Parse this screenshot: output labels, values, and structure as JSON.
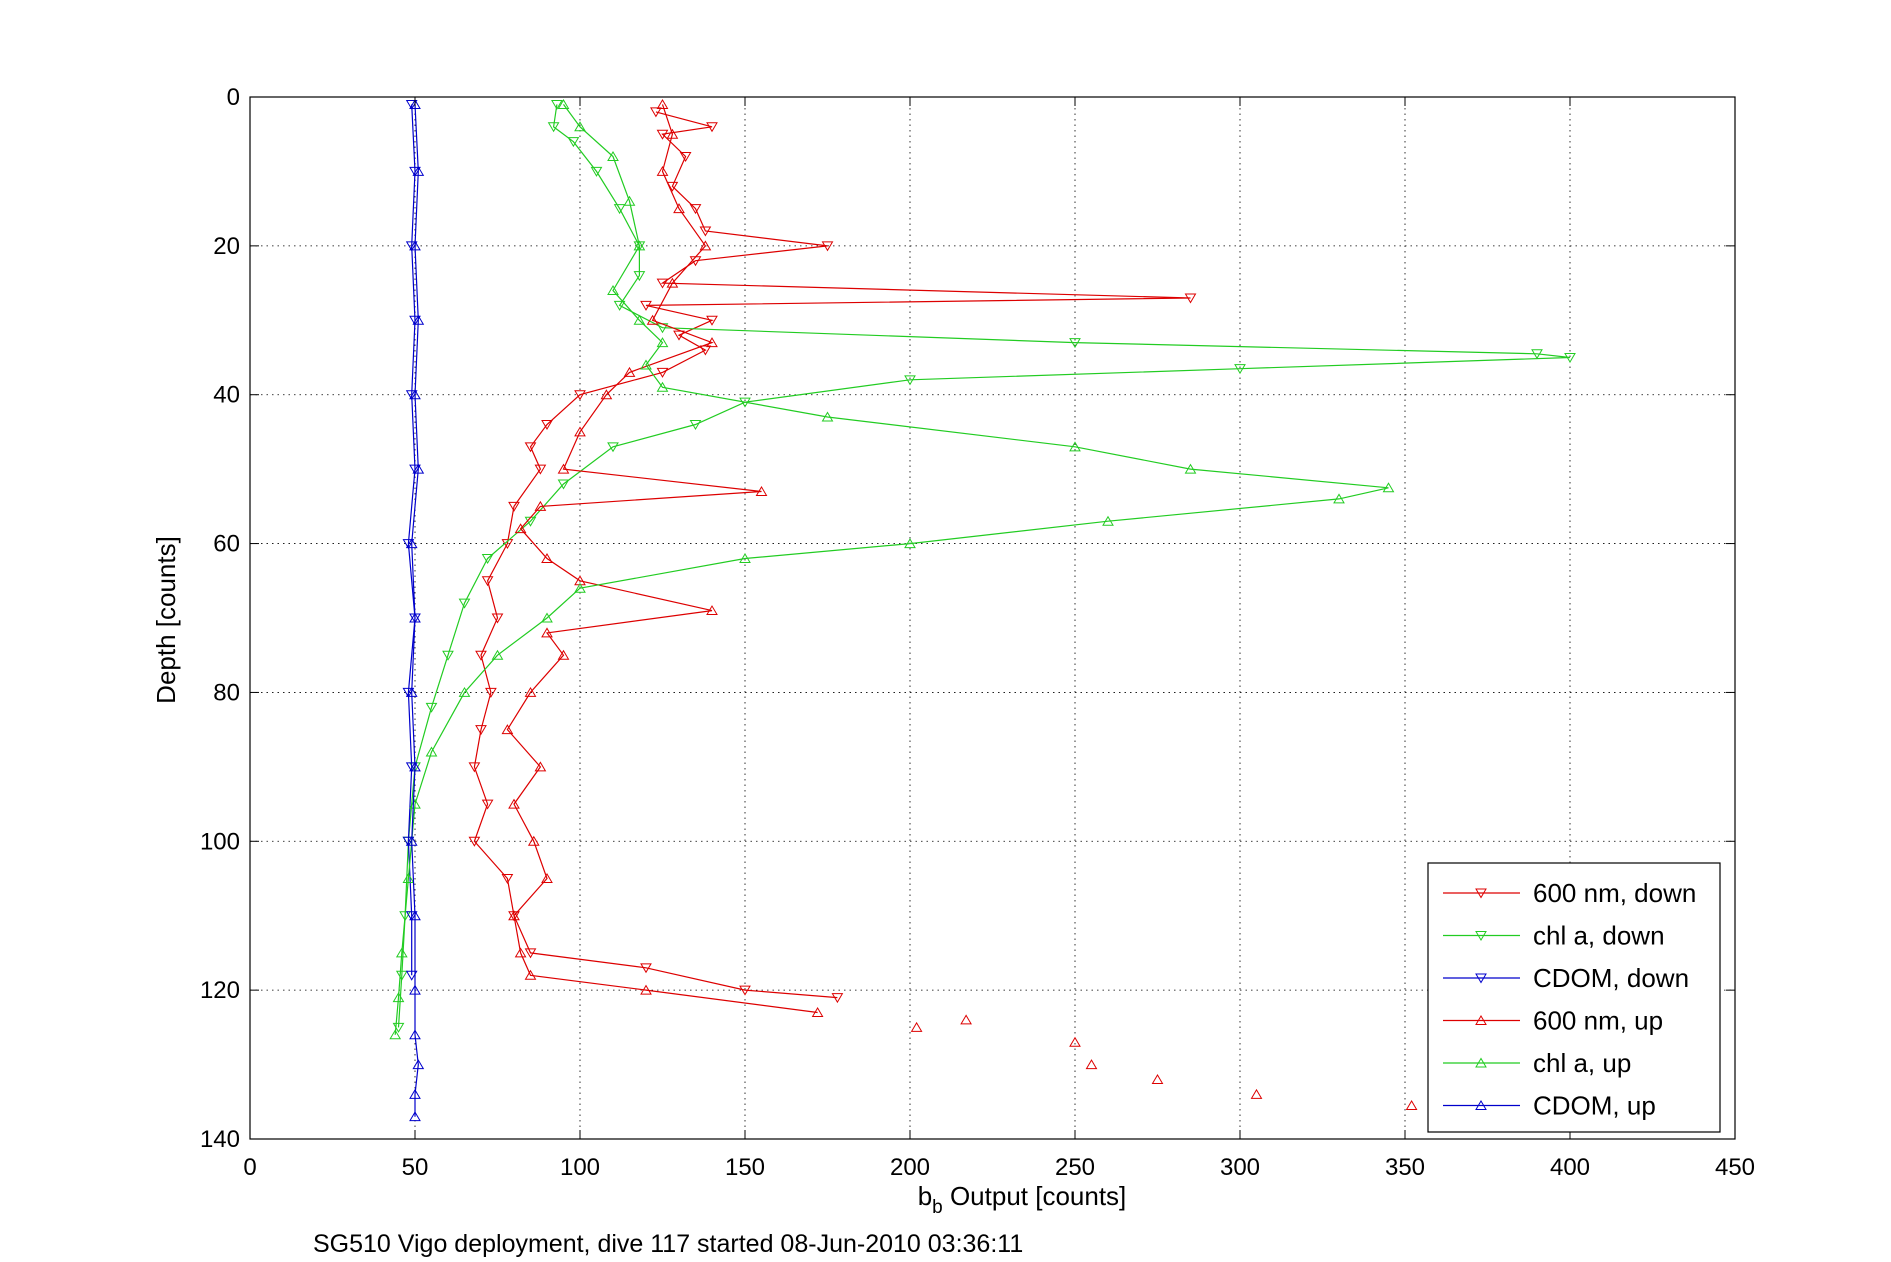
{
  "chart_data": {
    "type": "line",
    "xlabel_main": "b",
    "xlabel_sub": "b",
    "xlabel_rest": " Output [counts]",
    "ylabel": "Depth [counts]",
    "caption": "SG510 Vigo deployment, dive 117 started 08-Jun-2010 03:36:11",
    "xlim": [
      0,
      450
    ],
    "ylim": [
      0,
      140
    ],
    "y_reversed": true,
    "grid": true,
    "legend_position": "bottom-right",
    "xticks": [
      0,
      50,
      100,
      150,
      200,
      250,
      300,
      350,
      400,
      450
    ],
    "yticks": [
      0,
      20,
      40,
      60,
      80,
      100,
      120,
      140
    ],
    "series": [
      {
        "name": "600 nm, down",
        "color": "#dd0000",
        "marker": "down-triangle",
        "line": true,
        "points": [
          [
            123,
            2
          ],
          [
            140,
            4
          ],
          [
            125,
            5
          ],
          [
            132,
            8
          ],
          [
            128,
            12
          ],
          [
            135,
            15
          ],
          [
            138,
            18
          ],
          [
            175,
            20
          ],
          [
            135,
            22
          ],
          [
            125,
            25
          ],
          [
            285,
            27
          ],
          [
            120,
            28
          ],
          [
            140,
            30
          ],
          [
            130,
            32
          ],
          [
            138,
            34
          ],
          [
            125,
            37
          ],
          [
            100,
            40
          ],
          [
            90,
            44
          ],
          [
            85,
            47
          ],
          [
            88,
            50
          ],
          [
            80,
            55
          ],
          [
            78,
            60
          ],
          [
            72,
            65
          ],
          [
            75,
            70
          ],
          [
            70,
            75
          ],
          [
            73,
            80
          ],
          [
            70,
            85
          ],
          [
            68,
            90
          ],
          [
            72,
            95
          ],
          [
            68,
            100
          ],
          [
            78,
            105
          ],
          [
            80,
            110
          ],
          [
            85,
            115
          ],
          [
            120,
            117
          ],
          [
            150,
            120
          ],
          [
            178,
            121
          ]
        ]
      },
      {
        "name": "chl a, down",
        "color": "#22cc22",
        "marker": "down-triangle",
        "line": true,
        "points": [
          [
            93,
            1
          ],
          [
            92,
            4
          ],
          [
            98,
            6
          ],
          [
            105,
            10
          ],
          [
            112,
            15
          ],
          [
            118,
            20
          ],
          [
            118,
            24
          ],
          [
            112,
            28
          ],
          [
            125,
            31
          ],
          [
            250,
            33
          ],
          [
            390,
            34.5
          ],
          [
            400,
            35
          ],
          [
            300,
            36.5
          ],
          [
            200,
            38
          ],
          [
            150,
            41
          ],
          [
            135,
            44
          ],
          [
            110,
            47
          ],
          [
            95,
            52
          ],
          [
            85,
            57
          ],
          [
            72,
            62
          ],
          [
            65,
            68
          ],
          [
            60,
            75
          ],
          [
            55,
            82
          ],
          [
            50,
            90
          ],
          [
            48,
            100
          ],
          [
            47,
            110
          ],
          [
            46,
            118
          ],
          [
            45,
            125
          ]
        ]
      },
      {
        "name": "CDOM, down",
        "color": "#0000cc",
        "marker": "down-triangle",
        "line": true,
        "points": [
          [
            49,
            1
          ],
          [
            50,
            10
          ],
          [
            49,
            20
          ],
          [
            50,
            30
          ],
          [
            49,
            40
          ],
          [
            50,
            50
          ],
          [
            48,
            60
          ],
          [
            50,
            70
          ],
          [
            48,
            80
          ],
          [
            49,
            90
          ],
          [
            48,
            100
          ],
          [
            49,
            110
          ],
          [
            49,
            118
          ]
        ]
      },
      {
        "name": "600 nm, up",
        "color": "#dd0000",
        "marker": "up-triangle",
        "line": true,
        "points": [
          [
            125,
            1
          ],
          [
            128,
            5
          ],
          [
            125,
            10
          ],
          [
            130,
            15
          ],
          [
            138,
            20
          ],
          [
            128,
            25
          ],
          [
            122,
            30
          ],
          [
            140,
            33
          ],
          [
            115,
            37
          ],
          [
            108,
            40
          ],
          [
            100,
            45
          ],
          [
            95,
            50
          ],
          [
            155,
            53
          ],
          [
            88,
            55
          ],
          [
            82,
            58
          ],
          [
            90,
            62
          ],
          [
            100,
            65
          ],
          [
            140,
            69
          ],
          [
            90,
            72
          ],
          [
            95,
            75
          ],
          [
            85,
            80
          ],
          [
            78,
            85
          ],
          [
            88,
            90
          ],
          [
            80,
            95
          ],
          [
            86,
            100
          ],
          [
            90,
            105
          ],
          [
            80,
            110
          ],
          [
            82,
            115
          ],
          [
            85,
            118
          ],
          [
            120,
            120
          ],
          [
            172,
            123
          ]
        ],
        "scatter_points": [
          [
            217,
            124
          ],
          [
            202,
            125
          ],
          [
            250,
            127
          ],
          [
            255,
            130
          ],
          [
            275,
            132
          ],
          [
            305,
            134
          ],
          [
            352,
            135.5
          ]
        ]
      },
      {
        "name": "chl a, up",
        "color": "#22cc22",
        "marker": "up-triangle",
        "line": true,
        "points": [
          [
            95,
            1
          ],
          [
            100,
            4
          ],
          [
            110,
            8
          ],
          [
            115,
            14
          ],
          [
            118,
            20
          ],
          [
            110,
            26
          ],
          [
            118,
            30
          ],
          [
            125,
            33
          ],
          [
            120,
            36
          ],
          [
            125,
            39
          ],
          [
            175,
            43
          ],
          [
            250,
            47
          ],
          [
            285,
            50
          ],
          [
            345,
            52.5
          ],
          [
            330,
            54
          ],
          [
            260,
            57
          ],
          [
            200,
            60
          ],
          [
            150,
            62
          ],
          [
            100,
            66
          ],
          [
            90,
            70
          ],
          [
            75,
            75
          ],
          [
            65,
            80
          ],
          [
            55,
            88
          ],
          [
            50,
            95
          ],
          [
            48,
            105
          ],
          [
            46,
            115
          ],
          [
            45,
            121
          ],
          [
            44,
            126
          ]
        ]
      },
      {
        "name": "CDOM, up",
        "color": "#0000cc",
        "marker": "up-triangle",
        "line": true,
        "points": [
          [
            50,
            1
          ],
          [
            51,
            10
          ],
          [
            50,
            20
          ],
          [
            51,
            30
          ],
          [
            50,
            40
          ],
          [
            51,
            50
          ],
          [
            49,
            60
          ],
          [
            50,
            70
          ],
          [
            49,
            80
          ],
          [
            50,
            90
          ],
          [
            49,
            100
          ],
          [
            50,
            110
          ],
          [
            50,
            120
          ],
          [
            50,
            126
          ],
          [
            51,
            130
          ],
          [
            50,
            134
          ],
          [
            50,
            137
          ]
        ]
      }
    ]
  }
}
